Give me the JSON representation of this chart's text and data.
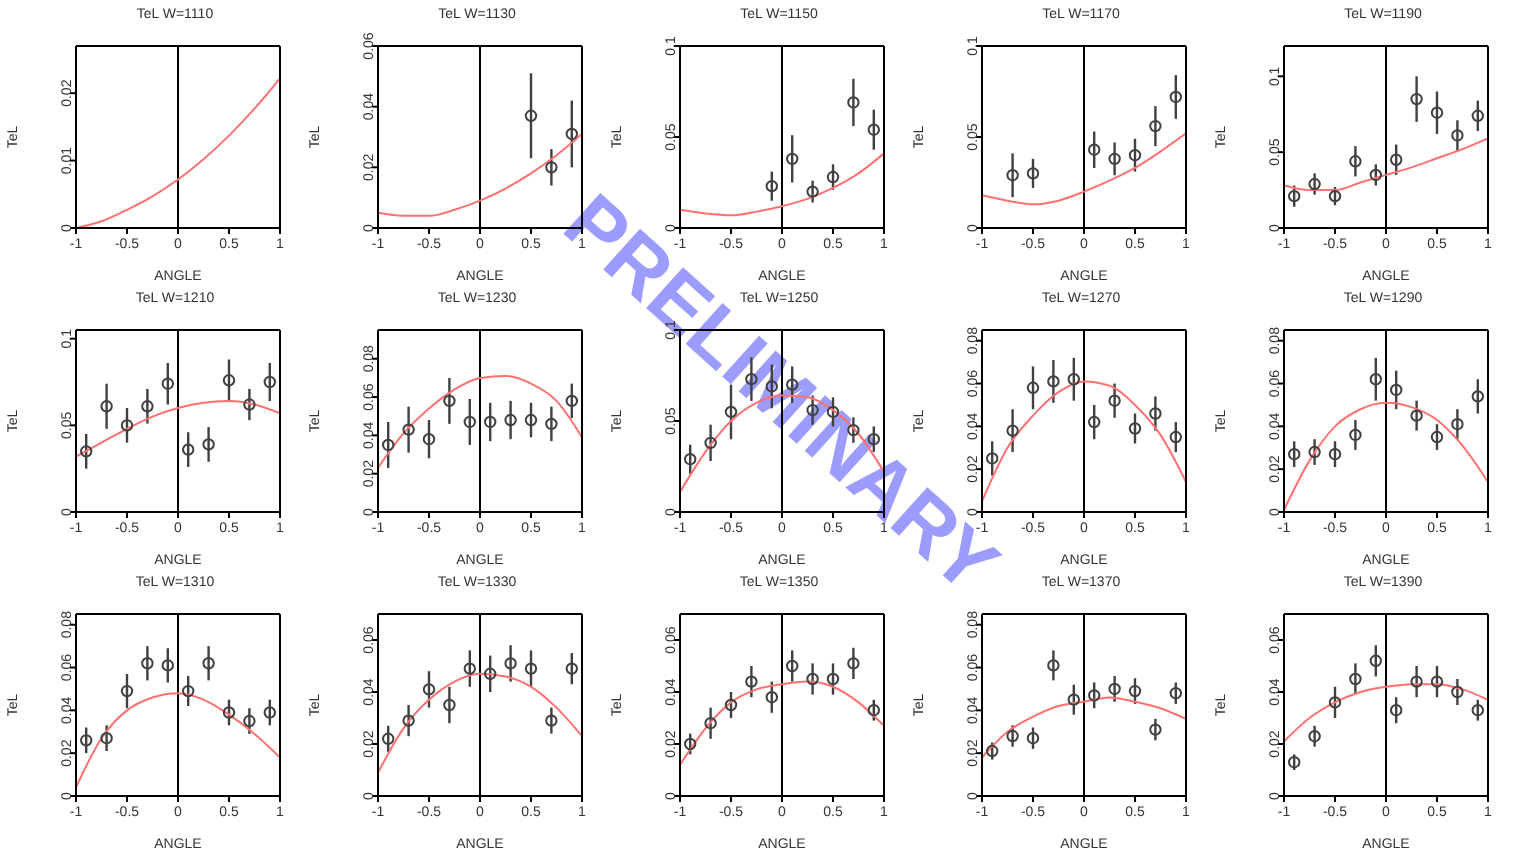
{
  "chart_data": [
    {
      "type": "line",
      "title": "TeL W=1110",
      "xlabel": "ANGLE",
      "ylabel": "TeL",
      "xlim": [
        -1,
        1
      ],
      "xticks": [
        -1,
        -0.5,
        0,
        0.5,
        1
      ],
      "ylim": [
        0,
        0.027
      ],
      "yticks": [
        0,
        0.01,
        0.02
      ],
      "ref_lines": [
        {
          "axis": "x",
          "value": 0,
          "color": "#000000"
        }
      ],
      "series": [
        {
          "color": "#ff7070",
          "x": [
            -1,
            -0.75,
            -0.5,
            -0.25,
            0,
            0.25,
            0.5,
            0.75,
            1
          ],
          "values": [
            0,
            0.001,
            0.0027,
            0.0047,
            0.0072,
            0.0102,
            0.0137,
            0.0177,
            0.0222
          ]
        }
      ]
    },
    {
      "type": "scatter",
      "title": "TeL W=1130",
      "xlabel": "ANGLE",
      "ylabel": "TeL",
      "xlim": [
        -1,
        1
      ],
      "xticks": [
        -1,
        -0.5,
        0,
        0.5,
        1
      ],
      "ylim": [
        0,
        0.06
      ],
      "yticks": [
        0,
        0.02,
        0.04,
        0.06
      ],
      "ref_lines": [
        {
          "axis": "x",
          "value": 0,
          "color": "#000000"
        }
      ],
      "series": [
        {
          "marker": "circle",
          "color": "#404040",
          "x": [
            0.5,
            0.7,
            0.9
          ],
          "values": [
            0.037,
            0.02,
            0.031
          ],
          "errors": [
            0.014,
            0.006,
            0.011
          ]
        },
        {
          "type": "line",
          "color": "#ff7070",
          "x": [
            -1,
            -0.75,
            -0.5,
            -0.25,
            0,
            0.25,
            0.5,
            0.75,
            1
          ],
          "values": [
            0.005,
            0.004,
            0.004,
            0.006,
            0.009,
            0.013,
            0.018,
            0.024,
            0.031
          ]
        }
      ]
    },
    {
      "type": "scatter",
      "title": "TeL W=1150",
      "xlabel": "ANGLE",
      "ylabel": "TeL",
      "xlim": [
        -1,
        1
      ],
      "xticks": [
        -1,
        -0.5,
        0,
        0.5,
        1
      ],
      "ylim": [
        0,
        0.1
      ],
      "yticks": [
        0,
        0.05,
        0.1
      ],
      "ref_lines": [
        {
          "axis": "x",
          "value": 0,
          "color": "#000000"
        }
      ],
      "series": [
        {
          "marker": "circle",
          "color": "#404040",
          "x": [
            -0.1,
            0.1,
            0.3,
            0.5,
            0.7,
            0.9
          ],
          "values": [
            0.023,
            0.038,
            0.02,
            0.028,
            0.069,
            0.054
          ],
          "errors": [
            0.008,
            0.013,
            0.006,
            0.007,
            0.013,
            0.011
          ]
        },
        {
          "type": "line",
          "color": "#ff7070",
          "x": [
            -1,
            -0.75,
            -0.5,
            -0.25,
            0,
            0.25,
            0.5,
            0.75,
            1
          ],
          "values": [
            0.01,
            0.008,
            0.007,
            0.009,
            0.012,
            0.016,
            0.022,
            0.03,
            0.041
          ]
        }
      ]
    },
    {
      "type": "scatter",
      "title": "TeL W=1170",
      "xlabel": "ANGLE",
      "ylabel": "TeL",
      "xlim": [
        -1,
        1
      ],
      "xticks": [
        -1,
        -0.5,
        0,
        0.5,
        1
      ],
      "ylim": [
        0,
        0.1
      ],
      "yticks": [
        0,
        0.05,
        0.1
      ],
      "ref_lines": [
        {
          "axis": "x",
          "value": 0,
          "color": "#000000"
        }
      ],
      "series": [
        {
          "marker": "circle",
          "color": "#404040",
          "x": [
            -0.7,
            -0.5,
            0.1,
            0.3,
            0.5,
            0.7,
            0.9
          ],
          "values": [
            0.029,
            0.03,
            0.043,
            0.038,
            0.04,
            0.056,
            0.072
          ],
          "errors": [
            0.012,
            0.008,
            0.01,
            0.009,
            0.009,
            0.011,
            0.012
          ]
        },
        {
          "type": "line",
          "color": "#ff7070",
          "x": [
            -1,
            -0.75,
            -0.5,
            -0.25,
            0,
            0.25,
            0.5,
            0.75,
            1
          ],
          "values": [
            0.018,
            0.015,
            0.013,
            0.015,
            0.02,
            0.026,
            0.033,
            0.042,
            0.052
          ]
        }
      ]
    },
    {
      "type": "scatter",
      "title": "TeL W=1190",
      "xlabel": "ANGLE",
      "ylabel": "TeL",
      "xlim": [
        -1,
        1
      ],
      "xticks": [
        -1,
        -0.5,
        0,
        0.5,
        1
      ],
      "ylim": [
        0,
        0.12
      ],
      "yticks": [
        0,
        0.05,
        0.1
      ],
      "ref_lines": [
        {
          "axis": "x",
          "value": 0,
          "color": "#000000"
        }
      ],
      "series": [
        {
          "marker": "circle",
          "color": "#404040",
          "x": [
            -0.9,
            -0.7,
            -0.5,
            -0.3,
            -0.1,
            0.1,
            0.3,
            0.5,
            0.7,
            0.9
          ],
          "values": [
            0.021,
            0.029,
            0.021,
            0.044,
            0.035,
            0.045,
            0.085,
            0.076,
            0.061,
            0.074
          ],
          "errors": [
            0.007,
            0.007,
            0.006,
            0.01,
            0.007,
            0.01,
            0.015,
            0.014,
            0.01,
            0.01
          ]
        },
        {
          "type": "line",
          "color": "#ff7070",
          "x": [
            -1,
            -0.75,
            -0.5,
            -0.25,
            0,
            0.25,
            0.5,
            0.75,
            1
          ],
          "values": [
            0.028,
            0.025,
            0.025,
            0.03,
            0.035,
            0.04,
            0.046,
            0.052,
            0.059
          ]
        }
      ]
    },
    {
      "type": "scatter",
      "title": "TeL W=1210",
      "xlabel": "ANGLE",
      "ylabel": "TeL",
      "xlim": [
        -1,
        1
      ],
      "xticks": [
        -1,
        -0.5,
        0,
        0.5,
        1
      ],
      "ylim": [
        0,
        0.105
      ],
      "yticks": [
        0,
        0.05,
        0.1
      ],
      "ref_lines": [
        {
          "axis": "x",
          "value": 0,
          "color": "#000000"
        }
      ],
      "series": [
        {
          "marker": "circle",
          "color": "#404040",
          "x": [
            -0.9,
            -0.7,
            -0.5,
            -0.3,
            -0.1,
            0.1,
            0.3,
            0.5,
            0.7,
            0.9
          ],
          "values": [
            0.035,
            0.061,
            0.05,
            0.061,
            0.074,
            0.036,
            0.039,
            0.076,
            0.062,
            0.075
          ],
          "errors": [
            0.01,
            0.013,
            0.01,
            0.01,
            0.012,
            0.01,
            0.01,
            0.012,
            0.009,
            0.011
          ]
        },
        {
          "type": "line",
          "color": "#ff7070",
          "x": [
            -1,
            -0.75,
            -0.5,
            -0.25,
            0,
            0.25,
            0.5,
            0.75,
            1
          ],
          "values": [
            0.032,
            0.04,
            0.048,
            0.055,
            0.06,
            0.063,
            0.064,
            0.062,
            0.057
          ]
        }
      ]
    },
    {
      "type": "scatter",
      "title": "TeL W=1230",
      "xlabel": "ANGLE",
      "ylabel": "TeL",
      "xlim": [
        -1,
        1
      ],
      "xticks": [
        -1,
        -0.5,
        0,
        0.5,
        1
      ],
      "ylim": [
        0,
        0.095
      ],
      "yticks": [
        0,
        0.02,
        0.04,
        0.06,
        0.08
      ],
      "ref_lines": [
        {
          "axis": "x",
          "value": 0,
          "color": "#000000"
        }
      ],
      "series": [
        {
          "marker": "circle",
          "color": "#404040",
          "x": [
            -0.9,
            -0.7,
            -0.5,
            -0.3,
            -0.1,
            0.1,
            0.3,
            0.5,
            0.7,
            0.9
          ],
          "values": [
            0.035,
            0.043,
            0.038,
            0.058,
            0.047,
            0.047,
            0.048,
            0.048,
            0.046,
            0.058
          ],
          "errors": [
            0.012,
            0.012,
            0.01,
            0.012,
            0.012,
            0.01,
            0.01,
            0.009,
            0.009,
            0.009
          ]
        },
        {
          "type": "line",
          "color": "#ff7070",
          "x": [
            -1,
            -0.75,
            -0.5,
            -0.25,
            0,
            0.25,
            0.5,
            0.75,
            1
          ],
          "values": [
            0.023,
            0.041,
            0.054,
            0.064,
            0.07,
            0.071,
            0.067,
            0.058,
            0.039
          ]
        }
      ]
    },
    {
      "type": "scatter",
      "title": "TeL W=1250",
      "xlabel": "ANGLE",
      "ylabel": "TeL",
      "xlim": [
        -1,
        1
      ],
      "xticks": [
        -1,
        -0.5,
        0,
        0.5,
        1
      ],
      "ylim": [
        0,
        0.1
      ],
      "yticks": [
        0,
        0.05,
        0.1
      ],
      "annotations": [
        "PRELIMINARY"
      ],
      "ref_lines": [
        {
          "axis": "x",
          "value": 0,
          "color": "#000000"
        }
      ],
      "series": [
        {
          "marker": "circle",
          "color": "#404040",
          "x": [
            -0.9,
            -0.7,
            -0.5,
            -0.3,
            -0.1,
            0.1,
            0.3,
            0.5,
            0.7,
            0.9
          ],
          "values": [
            0.029,
            0.038,
            0.055,
            0.073,
            0.069,
            0.07,
            0.056,
            0.055,
            0.045,
            0.04
          ],
          "errors": [
            0.008,
            0.01,
            0.015,
            0.012,
            0.012,
            0.01,
            0.008,
            0.008,
            0.007,
            0.007
          ]
        },
        {
          "type": "line",
          "color": "#ff7070",
          "x": [
            -1,
            -0.75,
            -0.5,
            -0.25,
            0,
            0.25,
            0.5,
            0.75,
            1
          ],
          "values": [
            0.011,
            0.033,
            0.05,
            0.06,
            0.064,
            0.063,
            0.056,
            0.043,
            0.022
          ]
        }
      ]
    },
    {
      "type": "scatter",
      "title": "TeL W=1270",
      "xlabel": "ANGLE",
      "ylabel": "TeL",
      "xlim": [
        -1,
        1
      ],
      "xticks": [
        -1,
        -0.5,
        0,
        0.5,
        1
      ],
      "ylim": [
        0,
        0.085
      ],
      "yticks": [
        0,
        0.02,
        0.04,
        0.06,
        0.08
      ],
      "ref_lines": [
        {
          "axis": "x",
          "value": 0,
          "color": "#000000"
        }
      ],
      "series": [
        {
          "marker": "circle",
          "color": "#404040",
          "x": [
            -0.9,
            -0.7,
            -0.5,
            -0.3,
            -0.1,
            0.1,
            0.3,
            0.5,
            0.7,
            0.9
          ],
          "values": [
            0.025,
            0.038,
            0.058,
            0.061,
            0.062,
            0.042,
            0.052,
            0.039,
            0.046,
            0.035
          ],
          "errors": [
            0.008,
            0.01,
            0.01,
            0.01,
            0.01,
            0.008,
            0.008,
            0.007,
            0.008,
            0.007
          ]
        },
        {
          "type": "line",
          "color": "#ff7070",
          "x": [
            -1,
            -0.75,
            -0.5,
            -0.25,
            0,
            0.25,
            0.5,
            0.75,
            1
          ],
          "values": [
            0.005,
            0.03,
            0.045,
            0.056,
            0.061,
            0.059,
            0.05,
            0.036,
            0.014
          ]
        }
      ]
    },
    {
      "type": "scatter",
      "title": "TeL W=1290",
      "xlabel": "ANGLE",
      "ylabel": "TeL",
      "xlim": [
        -1,
        1
      ],
      "xticks": [
        -1,
        -0.5,
        0,
        0.5,
        1
      ],
      "ylim": [
        0,
        0.085
      ],
      "yticks": [
        0,
        0.02,
        0.04,
        0.06,
        0.08
      ],
      "ref_lines": [
        {
          "axis": "x",
          "value": 0,
          "color": "#000000"
        }
      ],
      "series": [
        {
          "marker": "circle",
          "color": "#404040",
          "x": [
            -0.9,
            -0.7,
            -0.5,
            -0.3,
            -0.1,
            0.1,
            0.3,
            0.5,
            0.7,
            0.9
          ],
          "values": [
            0.027,
            0.028,
            0.027,
            0.036,
            0.062,
            0.057,
            0.045,
            0.035,
            0.041,
            0.054
          ],
          "errors": [
            0.006,
            0.006,
            0.006,
            0.007,
            0.01,
            0.009,
            0.007,
            0.006,
            0.007,
            0.008
          ]
        },
        {
          "type": "line",
          "color": "#ff7070",
          "x": [
            -1,
            -0.75,
            -0.5,
            -0.25,
            0,
            0.25,
            0.5,
            0.75,
            1
          ],
          "values": [
            0.001,
            0.024,
            0.04,
            0.048,
            0.051,
            0.049,
            0.043,
            0.031,
            0.014
          ]
        }
      ]
    },
    {
      "type": "scatter",
      "title": "TeL W=1310",
      "xlabel": "ANGLE",
      "ylabel": "TeL",
      "xlim": [
        -1,
        1
      ],
      "xticks": [
        -1,
        -0.5,
        0,
        0.5,
        1
      ],
      "ylim": [
        0,
        0.085
      ],
      "yticks": [
        0,
        0.02,
        0.04,
        0.06,
        0.08
      ],
      "ref_lines": [
        {
          "axis": "x",
          "value": 0,
          "color": "#000000"
        }
      ],
      "series": [
        {
          "marker": "circle",
          "color": "#404040",
          "x": [
            -0.9,
            -0.7,
            -0.5,
            -0.3,
            -0.1,
            0.1,
            0.3,
            0.5,
            0.7,
            0.9
          ],
          "values": [
            0.026,
            0.027,
            0.049,
            0.062,
            0.061,
            0.049,
            0.062,
            0.039,
            0.035,
            0.039
          ],
          "errors": [
            0.006,
            0.006,
            0.008,
            0.008,
            0.008,
            0.007,
            0.008,
            0.006,
            0.006,
            0.006
          ]
        },
        {
          "type": "line",
          "color": "#ff7070",
          "x": [
            -1,
            -0.75,
            -0.5,
            -0.25,
            0,
            0.25,
            0.5,
            0.75,
            1
          ],
          "values": [
            0.004,
            0.027,
            0.04,
            0.046,
            0.048,
            0.045,
            0.038,
            0.029,
            0.018
          ]
        }
      ]
    },
    {
      "type": "scatter",
      "title": "TeL W=1330",
      "xlabel": "ANGLE",
      "ylabel": "TeL",
      "xlim": [
        -1,
        1
      ],
      "xticks": [
        -1,
        -0.5,
        0,
        0.5,
        1
      ],
      "ylim": [
        0,
        0.07
      ],
      "yticks": [
        0,
        0.02,
        0.04,
        0.06
      ],
      "ref_lines": [
        {
          "axis": "x",
          "value": 0,
          "color": "#000000"
        }
      ],
      "series": [
        {
          "marker": "circle",
          "color": "#404040",
          "x": [
            -0.9,
            -0.7,
            -0.5,
            -0.3,
            -0.1,
            0.1,
            0.3,
            0.5,
            0.7,
            0.9
          ],
          "values": [
            0.022,
            0.029,
            0.041,
            0.035,
            0.049,
            0.047,
            0.051,
            0.049,
            0.029,
            0.049
          ],
          "errors": [
            0.005,
            0.006,
            0.007,
            0.007,
            0.007,
            0.007,
            0.007,
            0.007,
            0.005,
            0.006
          ]
        },
        {
          "type": "line",
          "color": "#ff7070",
          "x": [
            -1,
            -0.75,
            -0.5,
            -0.25,
            0,
            0.25,
            0.5,
            0.75,
            1
          ],
          "values": [
            0.009,
            0.026,
            0.037,
            0.044,
            0.047,
            0.046,
            0.042,
            0.034,
            0.023
          ]
        }
      ]
    },
    {
      "type": "scatter",
      "title": "TeL W=1350",
      "xlabel": "ANGLE",
      "ylabel": "TeL",
      "xlim": [
        -1,
        1
      ],
      "xticks": [
        -1,
        -0.5,
        0,
        0.5,
        1
      ],
      "ylim": [
        0,
        0.07
      ],
      "yticks": [
        0,
        0.02,
        0.04,
        0.06
      ],
      "ref_lines": [
        {
          "axis": "x",
          "value": 0,
          "color": "#000000"
        }
      ],
      "series": [
        {
          "marker": "circle",
          "color": "#404040",
          "x": [
            -0.9,
            -0.7,
            -0.5,
            -0.3,
            -0.1,
            0.1,
            0.3,
            0.5,
            0.7,
            0.9
          ],
          "values": [
            0.02,
            0.028,
            0.035,
            0.044,
            0.038,
            0.05,
            0.045,
            0.045,
            0.051,
            0.033
          ],
          "errors": [
            0.004,
            0.006,
            0.005,
            0.006,
            0.006,
            0.006,
            0.006,
            0.006,
            0.006,
            0.004
          ]
        },
        {
          "type": "line",
          "color": "#ff7070",
          "x": [
            -1,
            -0.75,
            -0.5,
            -0.25,
            0,
            0.25,
            0.5,
            0.75,
            1
          ],
          "values": [
            0.012,
            0.026,
            0.036,
            0.041,
            0.043,
            0.044,
            0.042,
            0.036,
            0.027
          ]
        }
      ]
    },
    {
      "type": "scatter",
      "title": "TeL W=1370",
      "xlabel": "ANGLE",
      "ylabel": "TeL",
      "xlim": [
        -1,
        1
      ],
      "xticks": [
        -1,
        -0.5,
        0,
        0.5,
        1
      ],
      "ylim": [
        0,
        0.085
      ],
      "yticks": [
        0,
        0.02,
        0.04,
        0.06,
        0.08
      ],
      "ref_lines": [
        {
          "axis": "x",
          "value": 0,
          "color": "#000000"
        }
      ],
      "series": [
        {
          "marker": "circle",
          "color": "#404040",
          "x": [
            -0.9,
            -0.7,
            -0.5,
            -0.3,
            -0.1,
            0.1,
            0.3,
            0.5,
            0.7,
            0.9
          ],
          "values": [
            0.021,
            0.028,
            0.027,
            0.061,
            0.045,
            0.047,
            0.05,
            0.049,
            0.031,
            0.048
          ],
          "errors": [
            0.004,
            0.005,
            0.005,
            0.007,
            0.007,
            0.006,
            0.006,
            0.006,
            0.005,
            0.005
          ]
        },
        {
          "type": "line",
          "color": "#ff7070",
          "x": [
            -1,
            -0.75,
            -0.5,
            -0.25,
            0,
            0.25,
            0.5,
            0.75,
            1
          ],
          "values": [
            0.018,
            0.03,
            0.037,
            0.042,
            0.044,
            0.046,
            0.044,
            0.041,
            0.036
          ]
        }
      ]
    },
    {
      "type": "scatter",
      "title": "TeL W=1390",
      "xlabel": "ANGLE",
      "ylabel": "TeL",
      "xlim": [
        -1,
        1
      ],
      "xticks": [
        -1,
        -0.5,
        0,
        0.5,
        1
      ],
      "ylim": [
        0,
        0.07
      ],
      "yticks": [
        0,
        0.02,
        0.04,
        0.06
      ],
      "ref_lines": [
        {
          "axis": "x",
          "value": 0,
          "color": "#000000"
        }
      ],
      "series": [
        {
          "marker": "circle",
          "color": "#404040",
          "x": [
            -0.9,
            -0.7,
            -0.5,
            -0.3,
            -0.1,
            0.1,
            0.3,
            0.5,
            0.7,
            0.9
          ],
          "values": [
            0.013,
            0.023,
            0.036,
            0.045,
            0.052,
            0.033,
            0.044,
            0.044,
            0.04,
            0.033
          ],
          "errors": [
            0.003,
            0.004,
            0.006,
            0.006,
            0.006,
            0.005,
            0.006,
            0.006,
            0.005,
            0.004
          ]
        },
        {
          "type": "line",
          "color": "#ff7070",
          "x": [
            -1,
            -0.75,
            -0.5,
            -0.25,
            0,
            0.25,
            0.5,
            0.75,
            1
          ],
          "values": [
            0.021,
            0.03,
            0.036,
            0.04,
            0.042,
            0.043,
            0.043,
            0.041,
            0.037
          ]
        }
      ]
    }
  ]
}
